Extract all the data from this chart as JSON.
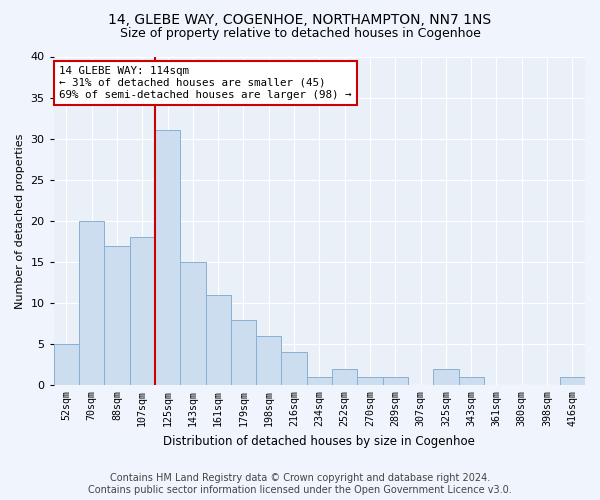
{
  "title": "14, GLEBE WAY, COGENHOE, NORTHAMPTON, NN7 1NS",
  "subtitle": "Size of property relative to detached houses in Cogenhoe",
  "xlabel": "Distribution of detached houses by size in Cogenhoe",
  "ylabel": "Number of detached properties",
  "bar_labels": [
    "52sqm",
    "70sqm",
    "88sqm",
    "107sqm",
    "125sqm",
    "143sqm",
    "161sqm",
    "179sqm",
    "198sqm",
    "216sqm",
    "234sqm",
    "252sqm",
    "270sqm",
    "289sqm",
    "307sqm",
    "325sqm",
    "343sqm",
    "361sqm",
    "380sqm",
    "398sqm",
    "416sqm"
  ],
  "bar_values": [
    5,
    20,
    17,
    18,
    31,
    15,
    11,
    8,
    6,
    4,
    1,
    2,
    1,
    1,
    0,
    2,
    1,
    0,
    0,
    0,
    1
  ],
  "bar_color": "#ccddf0",
  "bar_edge_color": "#88afd4",
  "vline_x": 3.5,
  "vline_color": "#cc0000",
  "annotation_text": "14 GLEBE WAY: 114sqm\n← 31% of detached houses are smaller (45)\n69% of semi-detached houses are larger (98) →",
  "annotation_box_color": "#ffffff",
  "annotation_box_edge": "#cc0000",
  "ylim": [
    0,
    40
  ],
  "yticks": [
    0,
    5,
    10,
    15,
    20,
    25,
    30,
    35,
    40
  ],
  "footer_line1": "Contains HM Land Registry data © Crown copyright and database right 2024.",
  "footer_line2": "Contains public sector information licensed under the Open Government Licence v3.0.",
  "bg_color": "#f0f4fc",
  "plot_bg_color": "#eaf0f8",
  "title_fontsize": 10,
  "subtitle_fontsize": 9,
  "footer_fontsize": 7
}
